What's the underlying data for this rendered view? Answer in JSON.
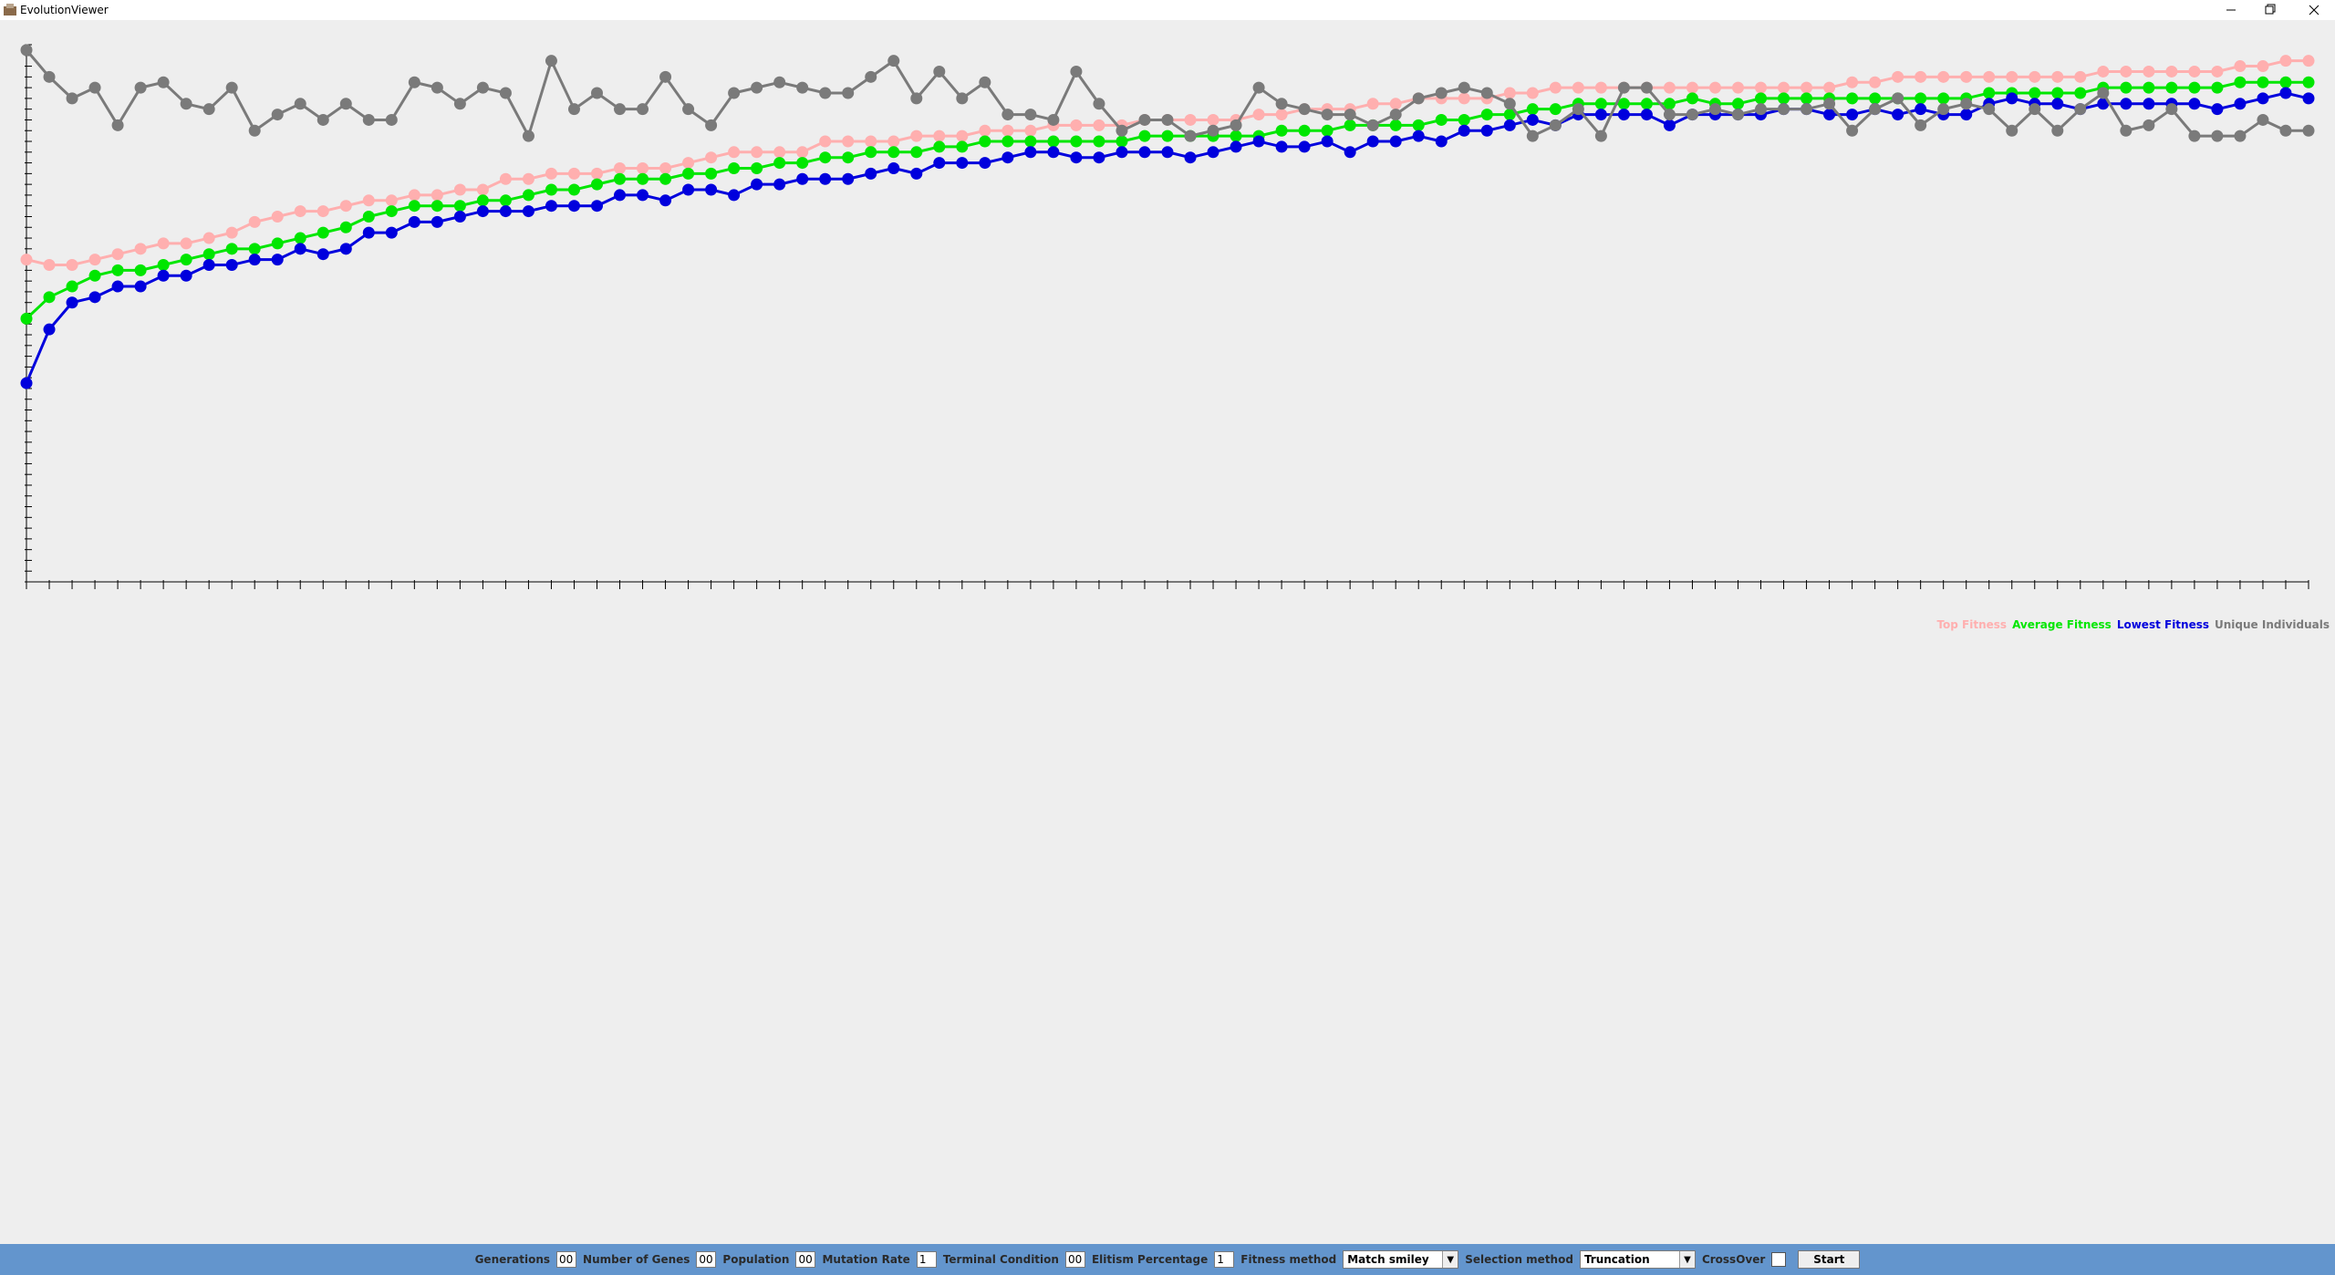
{
  "window": {
    "title": "EvolutionViewer"
  },
  "chart_data": {
    "type": "line",
    "x": [
      0,
      1,
      2,
      3,
      4,
      5,
      6,
      7,
      8,
      9,
      10,
      11,
      12,
      13,
      14,
      15,
      16,
      17,
      18,
      19,
      20,
      21,
      22,
      23,
      24,
      25,
      26,
      27,
      28,
      29,
      30,
      31,
      32,
      33,
      34,
      35,
      36,
      37,
      38,
      39,
      40,
      41,
      42,
      43,
      44,
      45,
      46,
      47,
      48,
      49,
      50,
      51,
      52,
      53,
      54,
      55,
      56,
      57,
      58,
      59,
      60,
      61,
      62,
      63,
      64,
      65,
      66,
      67,
      68,
      69,
      70,
      71,
      72,
      73,
      74,
      75,
      76,
      77,
      78,
      79,
      80,
      81,
      82,
      83,
      84,
      85,
      86,
      87,
      88,
      89,
      90,
      91,
      92,
      93,
      94,
      95,
      96,
      97,
      98,
      99,
      100
    ],
    "xlim": [
      0,
      100
    ],
    "xticks": [
      0,
      1,
      2,
      3,
      4,
      5,
      6,
      7,
      8,
      9,
      10,
      11,
      12,
      13,
      14,
      15,
      16,
      17,
      18,
      19,
      20,
      21,
      22,
      23,
      24,
      25,
      26,
      27,
      28,
      29,
      30,
      31,
      32,
      33,
      34,
      35,
      36,
      37,
      38,
      39,
      40,
      41,
      42,
      43,
      44,
      45,
      46,
      47,
      48,
      49,
      50,
      51,
      52,
      53,
      54,
      55,
      56,
      57,
      58,
      59,
      60,
      61,
      62,
      63,
      64,
      65,
      66,
      67,
      68,
      69,
      70,
      71,
      72,
      73,
      74,
      75,
      76,
      77,
      78,
      79,
      80,
      81,
      82,
      83,
      84,
      85,
      86,
      87,
      88,
      89,
      90,
      91,
      92,
      93,
      94,
      95,
      96,
      97,
      98,
      99,
      100
    ],
    "ylim": [
      0,
      100
    ],
    "yticks": [
      0,
      2,
      4,
      6,
      8,
      10,
      12,
      14,
      16,
      18,
      20,
      22,
      24,
      26,
      28,
      30,
      32,
      34,
      36,
      38,
      40,
      42,
      44,
      46,
      48,
      50,
      52,
      54,
      56,
      58,
      60,
      62,
      64,
      66,
      68,
      70,
      72,
      74,
      76,
      78,
      80,
      82,
      84,
      86,
      88,
      90,
      92,
      94,
      96,
      98,
      100
    ],
    "legend": "bottom-right",
    "series": [
      {
        "name": "Top Fitness",
        "color": "#ffafaf",
        "values": [
          60,
          59,
          59,
          60,
          61,
          62,
          63,
          63,
          64,
          65,
          67,
          68,
          69,
          69,
          70,
          71,
          71,
          72,
          72,
          73,
          73,
          75,
          75,
          76,
          76,
          76,
          77,
          77,
          77,
          78,
          79,
          80,
          80,
          80,
          80,
          82,
          82,
          82,
          82,
          83,
          83,
          83,
          84,
          84,
          84,
          85,
          85,
          85,
          85,
          86,
          86,
          86,
          86,
          86,
          87,
          87,
          88,
          88,
          88,
          89,
          89,
          90,
          90,
          90,
          90,
          91,
          91,
          92,
          92,
          92,
          92,
          92,
          92,
          92,
          92,
          92,
          92,
          92,
          92,
          92,
          93,
          93,
          94,
          94,
          94,
          94,
          94,
          94,
          94,
          94,
          94,
          95,
          95,
          95,
          95,
          95,
          95,
          96,
          96,
          97,
          97
        ]
      },
      {
        "name": "Average Fitness",
        "color": "#00e600",
        "values": [
          49,
          53,
          55,
          57,
          58,
          58,
          59,
          60,
          61,
          62,
          62,
          63,
          64,
          65,
          66,
          68,
          69,
          70,
          70,
          70,
          71,
          71,
          72,
          73,
          73,
          74,
          75,
          75,
          75,
          76,
          76,
          77,
          77,
          78,
          78,
          79,
          79,
          80,
          80,
          80,
          81,
          81,
          82,
          82,
          82,
          82,
          82,
          82,
          82,
          83,
          83,
          83,
          83,
          83,
          83,
          84,
          84,
          84,
          85,
          85,
          85,
          85,
          86,
          86,
          87,
          87,
          88,
          88,
          89,
          89,
          89,
          89,
          89,
          90,
          89,
          89,
          90,
          90,
          90,
          90,
          90,
          90,
          90,
          90,
          90,
          90,
          91,
          91,
          91,
          91,
          91,
          92,
          92,
          92,
          92,
          92,
          92,
          93,
          93,
          93,
          93
        ]
      },
      {
        "name": "Lowest Fitness",
        "color": "#0000dd",
        "values": [
          37,
          47,
          52,
          53,
          55,
          55,
          57,
          57,
          59,
          59,
          60,
          60,
          62,
          61,
          62,
          65,
          65,
          67,
          67,
          68,
          69,
          69,
          69,
          70,
          70,
          70,
          72,
          72,
          71,
          73,
          73,
          72,
          74,
          74,
          75,
          75,
          75,
          76,
          77,
          76,
          78,
          78,
          78,
          79,
          80,
          80,
          79,
          79,
          80,
          80,
          80,
          79,
          80,
          81,
          82,
          81,
          81,
          82,
          80,
          82,
          82,
          83,
          82,
          84,
          84,
          85,
          86,
          85,
          87,
          87,
          87,
          87,
          85,
          87,
          87,
          87,
          87,
          88,
          88,
          87,
          87,
          88,
          87,
          88,
          87,
          87,
          89,
          90,
          89,
          89,
          88,
          89,
          89,
          89,
          89,
          89,
          88,
          89,
          90,
          91,
          90
        ]
      },
      {
        "name": "Unique Individuals",
        "color": "#7a7a7a",
        "values": [
          99,
          94,
          90,
          92,
          85,
          92,
          93,
          89,
          88,
          92,
          84,
          87,
          89,
          86,
          89,
          86,
          86,
          93,
          92,
          89,
          92,
          91,
          83,
          97,
          88,
          91,
          88,
          88,
          94,
          88,
          85,
          91,
          92,
          93,
          92,
          91,
          91,
          94,
          97,
          90,
          95,
          90,
          93,
          87,
          87,
          86,
          95,
          89,
          84,
          86,
          86,
          83,
          84,
          85,
          92,
          89,
          88,
          87,
          87,
          85,
          87,
          90,
          91,
          92,
          91,
          89,
          83,
          85,
          88,
          83,
          92,
          92,
          87,
          87,
          88,
          87,
          88,
          88,
          88,
          89,
          84,
          88,
          90,
          85,
          88,
          89,
          88,
          84,
          88,
          84,
          88,
          91,
          84,
          85,
          88,
          83,
          83,
          83,
          86,
          84,
          84
        ]
      }
    ]
  },
  "controls": [
    {
      "label": "Generations",
      "field": "00"
    },
    {
      "label": "Number of Genes",
      "field": "00"
    },
    {
      "label": "Population",
      "field": "00"
    },
    {
      "label": "Mutation Rate",
      "field": "1"
    },
    {
      "label": "Terminal Condition",
      "field": "00"
    },
    {
      "label": "Elitism Percentage",
      "field": "1"
    },
    {
      "label": "Fitness method",
      "select": "Match smiley"
    },
    {
      "label": "Selection method",
      "select": "Truncation"
    },
    {
      "label": "CrossOver",
      "checkbox": false
    }
  ],
  "start_button": "Start"
}
